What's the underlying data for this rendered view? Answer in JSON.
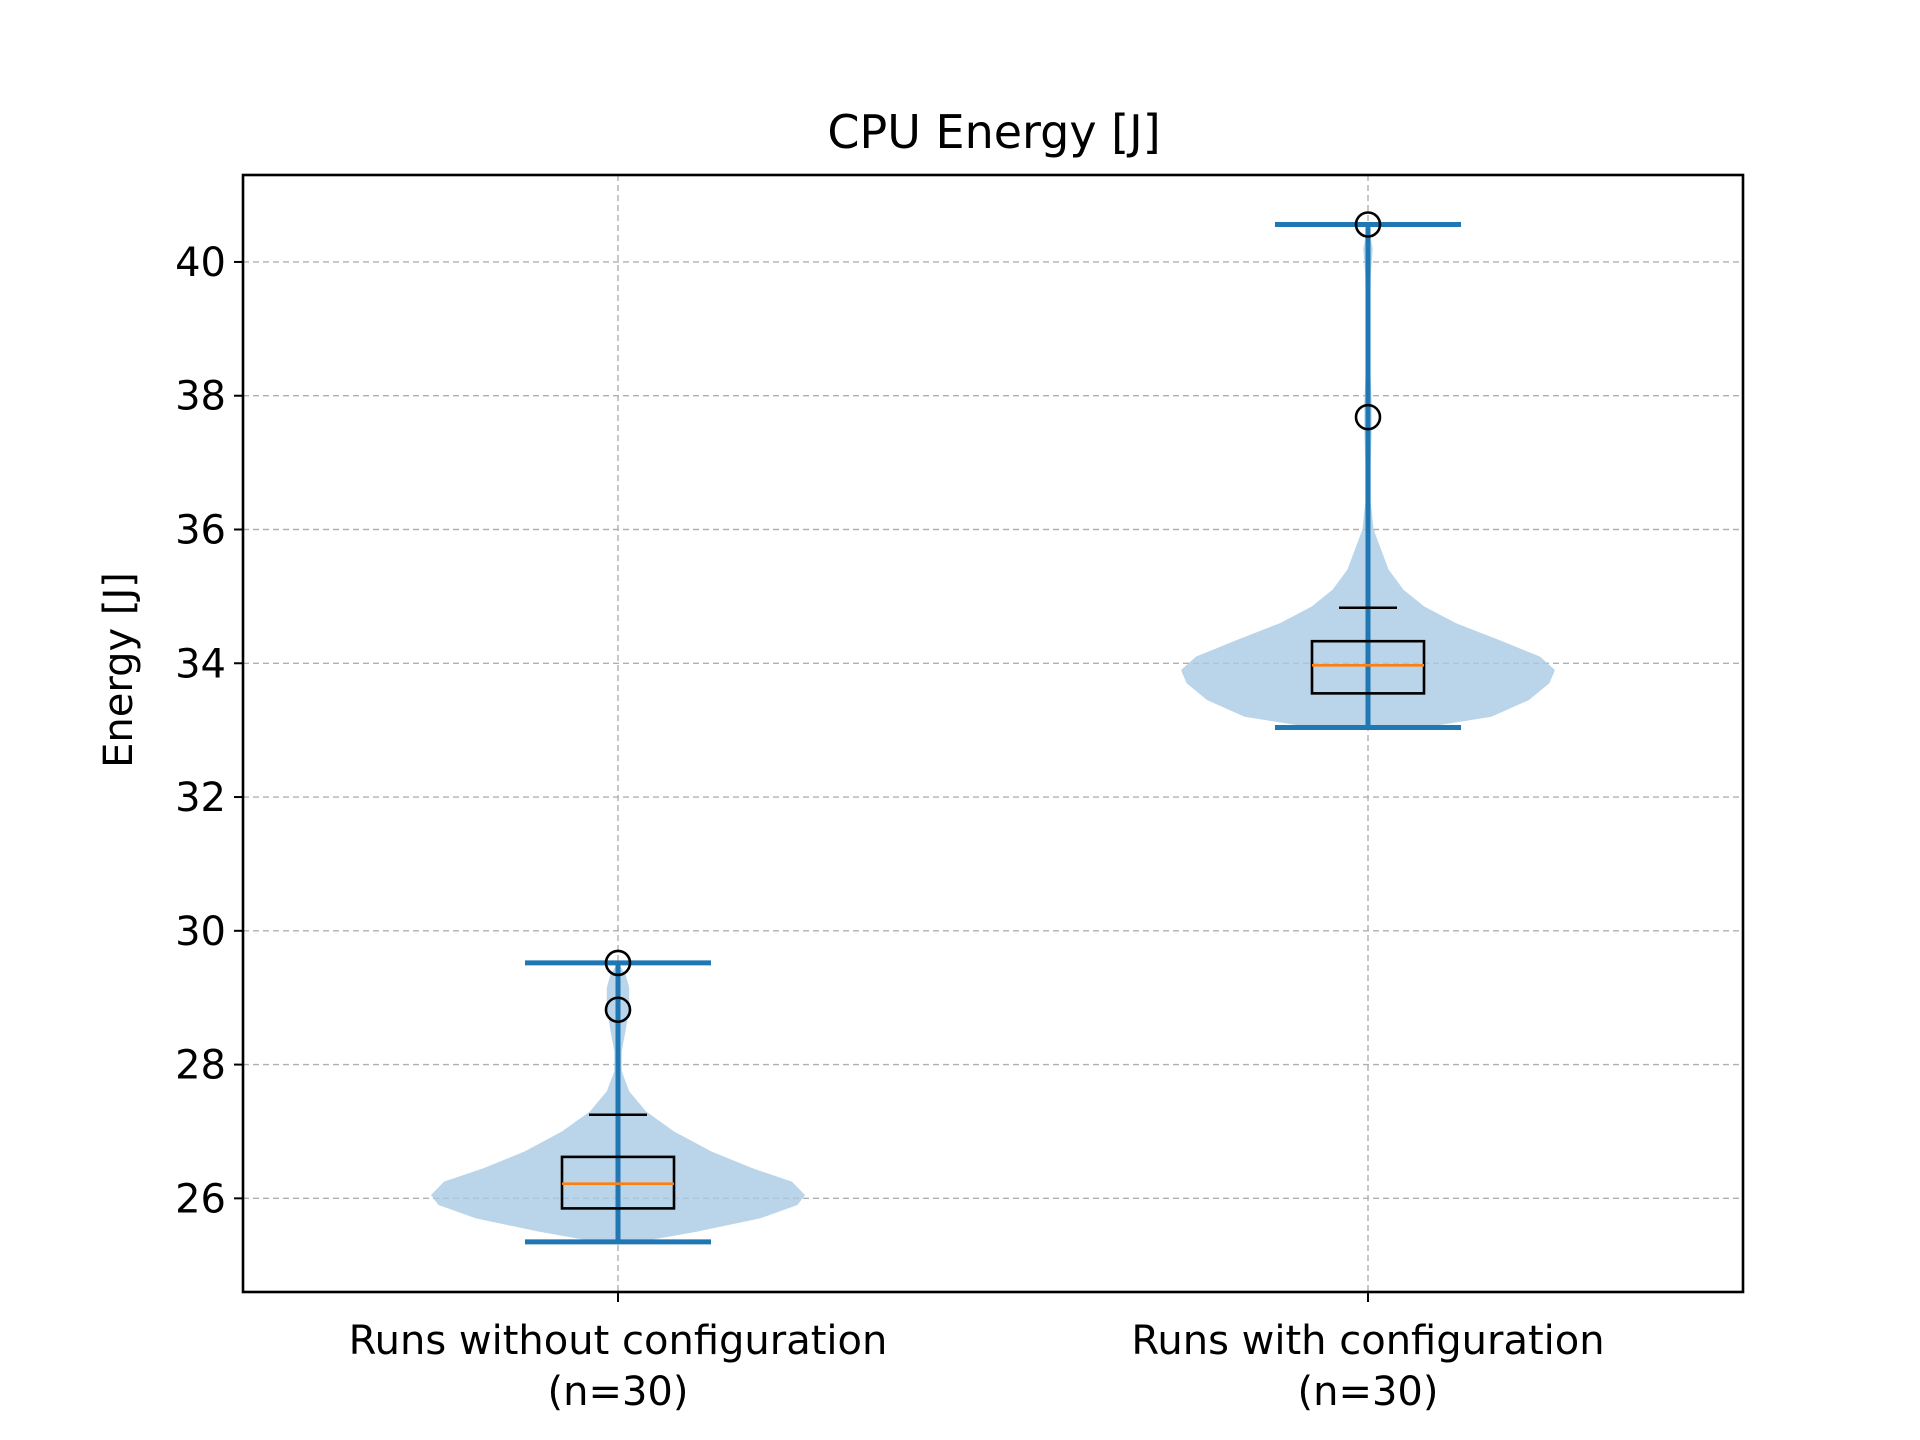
{
  "chart_data": {
    "type": "violin",
    "title": "CPU Energy [J]",
    "xlabel": "",
    "ylabel": "Energy [J]",
    "ylim": [
      24.6,
      41.3
    ],
    "yticks": [
      26,
      28,
      30,
      32,
      34,
      36,
      38,
      40
    ],
    "grid": true,
    "legend": "none",
    "categories": [
      {
        "line1": "Runs without configuration",
        "line2": "(n=30)"
      },
      {
        "line1": "Runs with configuration",
        "line2": "(n=30)"
      }
    ],
    "series": [
      {
        "category": "Runs without configuration (n=30)",
        "min": 25.35,
        "max": 29.52,
        "median": 26.22,
        "q1": 25.85,
        "q3": 26.62,
        "upper_whisker": 27.25,
        "outliers": [
          28.82,
          29.52
        ],
        "density": [
          [
            25.35,
            0.12
          ],
          [
            25.5,
            0.42
          ],
          [
            25.7,
            0.76
          ],
          [
            25.9,
            0.96
          ],
          [
            26.05,
            1.0
          ],
          [
            26.25,
            0.93
          ],
          [
            26.45,
            0.72
          ],
          [
            26.7,
            0.5
          ],
          [
            27.0,
            0.3
          ],
          [
            27.3,
            0.15
          ],
          [
            27.6,
            0.06
          ],
          [
            27.9,
            0.02
          ],
          [
            28.2,
            0.02
          ],
          [
            28.5,
            0.04
          ],
          [
            28.85,
            0.06
          ],
          [
            29.15,
            0.06
          ],
          [
            29.35,
            0.04
          ],
          [
            29.52,
            0.0
          ]
        ]
      },
      {
        "category": "Runs with configuration (n=30)",
        "min": 33.04,
        "max": 40.56,
        "median": 33.97,
        "q1": 33.55,
        "q3": 34.33,
        "upper_whisker": 34.83,
        "outliers": [
          37.68,
          40.56
        ],
        "density": [
          [
            33.04,
            0.3
          ],
          [
            33.2,
            0.66
          ],
          [
            33.45,
            0.86
          ],
          [
            33.7,
            0.97
          ],
          [
            33.9,
            1.0
          ],
          [
            34.1,
            0.92
          ],
          [
            34.35,
            0.7
          ],
          [
            34.6,
            0.47
          ],
          [
            34.85,
            0.3
          ],
          [
            35.1,
            0.19
          ],
          [
            35.4,
            0.11
          ],
          [
            35.7,
            0.07
          ],
          [
            36.0,
            0.03
          ],
          [
            36.4,
            0.015
          ],
          [
            37.0,
            0.015
          ],
          [
            37.5,
            0.02
          ],
          [
            37.9,
            0.02
          ],
          [
            38.5,
            0.01
          ],
          [
            39.2,
            0.01
          ],
          [
            39.8,
            0.015
          ],
          [
            40.2,
            0.025
          ],
          [
            40.56,
            0.0
          ]
        ]
      }
    ],
    "colors": {
      "violin_fill": "#a9cbe3",
      "violin_lines": "#1f77b4",
      "median": "#ff7f0e",
      "box": "#000000",
      "grid": "#b0b0b0"
    }
  }
}
